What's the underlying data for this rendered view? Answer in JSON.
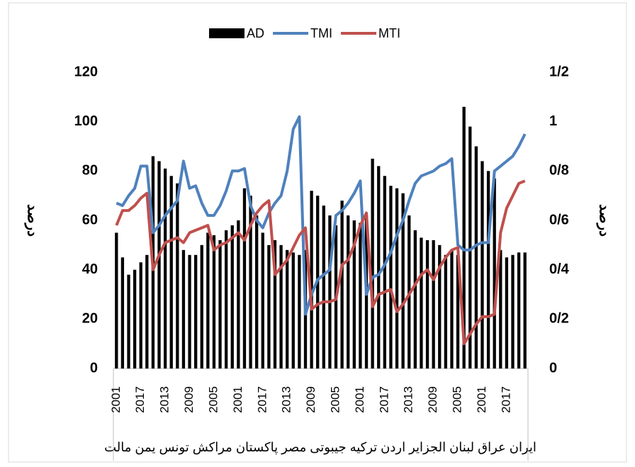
{
  "chart_data": {
    "type": "bar-line",
    "y_label": "درصد",
    "y2_label": "درصد",
    "group_label": "ایران عراق لبنان الجزایر اردن ترکیه جیبوتی مصر پاکستان مراکش تونس یمن مالت",
    "categories": [
      "2001",
      null,
      null,
      null,
      "2017",
      null,
      null,
      null,
      "2013",
      null,
      null,
      null,
      "2009",
      null,
      null,
      null,
      "2005",
      null,
      null,
      null,
      "2001",
      null,
      null,
      null,
      "2017",
      null,
      null,
      null,
      "2013",
      null,
      null,
      null,
      "2009",
      null,
      null,
      null,
      "2005",
      null,
      null,
      null,
      "2001",
      null,
      null,
      null,
      "2017",
      null,
      null,
      null,
      "2013",
      null,
      null,
      null,
      "2009",
      null,
      null,
      null,
      "2005",
      null,
      null,
      null,
      "2001",
      null,
      null,
      null,
      "2017",
      null,
      null,
      null
    ],
    "series": [
      {
        "name": "AD",
        "kind": "bar",
        "color": "#000000",
        "values": [
          55,
          45,
          38,
          40,
          43,
          46,
          86,
          84,
          81,
          78,
          75,
          48,
          46,
          46,
          50,
          55,
          54,
          52,
          56,
          58,
          60,
          73,
          70,
          62,
          55,
          50,
          52,
          50,
          48,
          47,
          46,
          48,
          72,
          70,
          66,
          62,
          58,
          68,
          62,
          60,
          59,
          62,
          85,
          82,
          78,
          74,
          73,
          71,
          62,
          56,
          53,
          52,
          52,
          50,
          46,
          48,
          46,
          106,
          98,
          90,
          84,
          80,
          77,
          48,
          45,
          46,
          47,
          47
        ]
      },
      {
        "name": "TMI",
        "kind": "line",
        "color": "#4f81bd",
        "values": [
          67,
          66,
          70,
          73,
          82,
          82,
          55,
          58,
          62,
          65,
          68,
          84,
          73,
          74,
          67,
          62,
          62,
          66,
          72,
          80,
          80,
          81,
          66,
          60,
          57,
          63,
          67,
          70,
          80,
          97,
          102,
          22,
          30,
          36,
          38,
          40,
          62,
          64,
          67,
          71,
          76,
          30,
          37,
          38,
          42,
          47,
          54,
          60,
          68,
          75,
          78,
          79,
          80,
          82,
          83,
          85,
          50,
          48,
          48,
          50,
          51,
          51,
          80,
          82,
          84,
          86,
          90,
          95
        ]
      },
      {
        "name": "MTI",
        "kind": "line",
        "color": "#c0504d",
        "values": [
          58,
          64,
          64,
          66,
          69,
          71,
          40,
          46,
          51,
          52,
          53,
          51,
          55,
          56,
          57,
          58,
          48,
          50,
          51,
          53,
          55,
          52,
          58,
          63,
          66,
          68,
          38,
          41,
          44,
          49,
          54,
          57,
          24,
          26,
          27,
          27,
          28,
          42,
          44,
          50,
          58,
          63,
          25,
          30,
          31,
          32,
          23,
          26,
          30,
          34,
          38,
          40,
          36,
          41,
          45,
          48,
          49,
          10,
          14,
          18,
          21,
          21,
          22,
          55,
          65,
          70,
          75,
          76
        ]
      }
    ],
    "ylim": [
      0,
      120
    ],
    "yticks": [
      0,
      20,
      40,
      60,
      80,
      100,
      120
    ],
    "y2lim": [
      0,
      1.2
    ],
    "y2ticks": [
      0,
      {
        "value": 0.2,
        "label": "0/2"
      },
      {
        "value": 0.4,
        "label": "0/4"
      },
      {
        "value": 0.6,
        "label": "0/6"
      },
      {
        "value": 0.8,
        "label": "0/8"
      },
      1,
      {
        "value": 1.2,
        "label": "1/2"
      }
    ],
    "legend": "top"
  }
}
